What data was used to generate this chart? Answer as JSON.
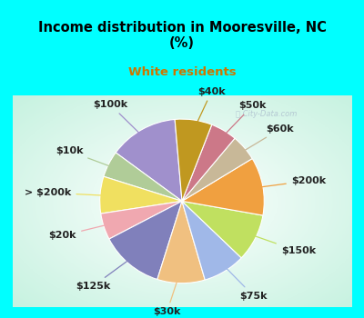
{
  "title": "Income distribution in Mooresville, NC\n(%)",
  "subtitle": "White residents",
  "title_color": "#000000",
  "subtitle_color": "#cc7700",
  "background_cyan": "#00ffff",
  "labels": [
    "$100k",
    "$10k",
    "> $200k",
    "$20k",
    "$125k",
    "$30k",
    "$75k",
    "$150k",
    "$200k",
    "$60k",
    "$50k",
    "$40k"
  ],
  "values": [
    13,
    5,
    7,
    5,
    12,
    9,
    8,
    9,
    11,
    5,
    5,
    7
  ],
  "colors": [
    "#a090cc",
    "#b0cc98",
    "#f0e060",
    "#f0a8b0",
    "#8080bb",
    "#f0c080",
    "#a0b8e8",
    "#c0e060",
    "#f0a040",
    "#c8b898",
    "#cc7888",
    "#c09820"
  ],
  "wedge_linewidth": 0.8,
  "wedge_linecolor": "#ffffff",
  "label_fontsize": 8,
  "startangle": 95
}
